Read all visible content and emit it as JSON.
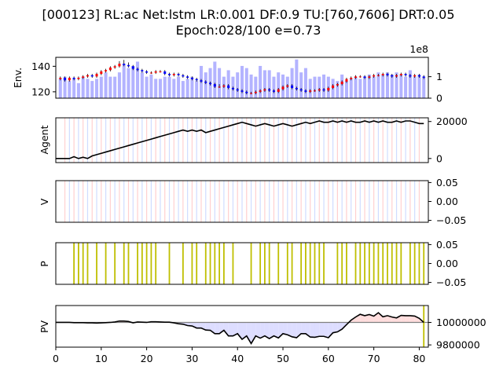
{
  "title_line1": "[000123] RL:ac Net:lstm LR:0.001 DF:0.9 TU:[760,7606] DRT:0.05",
  "title_line2": "Epoch:028/100 e=0.73",
  "colors": {
    "volume": "#b3b3ff",
    "up": "#ff0000",
    "down": "#0000ff",
    "buy_line": "#ffd0d0",
    "sell_line": "#d0dcff",
    "trade": "#bfbf00",
    "agent": "#000000",
    "pv_gain": "#ffdddd",
    "pv_loss": "#ddddff",
    "baseline": "#808080"
  },
  "chart_data": [
    {
      "panel": "env",
      "type": "bar",
      "ylabel": "Env.",
      "ylim": [
        115,
        147
      ],
      "yticks": [
        "120",
        "140"
      ],
      "right_ylim": [
        0,
        1.9
      ],
      "right_yticks": [
        "0",
        "1"
      ],
      "right_multiplier": "1e8",
      "x": [
        1,
        2,
        3,
        4,
        5,
        6,
        7,
        8,
        9,
        10,
        11,
        12,
        13,
        14,
        15,
        16,
        17,
        18,
        19,
        20,
        21,
        22,
        23,
        24,
        25,
        26,
        27,
        28,
        29,
        30,
        31,
        32,
        33,
        34,
        35,
        36,
        37,
        38,
        39,
        40,
        41,
        42,
        43,
        44,
        45,
        46,
        47,
        48,
        49,
        50,
        51,
        52,
        53,
        54,
        55,
        56,
        57,
        58,
        59,
        60,
        61,
        62,
        63,
        64,
        65,
        66,
        67,
        68,
        69,
        70,
        71,
        72,
        73,
        74,
        75,
        76,
        77,
        78,
        79,
        80,
        81
      ],
      "volume": [
        0.9,
        1.0,
        0.8,
        0.9,
        0.7,
        1.0,
        0.9,
        0.8,
        0.9,
        1.0,
        1.2,
        1.0,
        1.0,
        1.2,
        1.6,
        1.4,
        1.5,
        1.7,
        1.2,
        1.0,
        1.1,
        0.9,
        0.9,
        1.0,
        1.0,
        0.9,
        1.0,
        0.8,
        0.9,
        1.0,
        0.8,
        1.5,
        1.2,
        1.4,
        1.7,
        1.4,
        1.0,
        1.3,
        1.0,
        1.2,
        1.5,
        1.4,
        1.1,
        1.0,
        1.5,
        1.3,
        1.3,
        1.0,
        1.2,
        1.1,
        1.0,
        1.4,
        1.8,
        1.2,
        1.4,
        0.9,
        1.0,
        1.0,
        1.1,
        1.0,
        0.9,
        0.8,
        1.1,
        0.8,
        0.9,
        1.0,
        0.9,
        1.0,
        1.1,
        1.0,
        1.2,
        1.1,
        1.2,
        1.1,
        1.2,
        1.1,
        1.0,
        1.3,
        1.0,
        1.1,
        1.0
      ],
      "open": [
        130,
        131,
        129,
        131,
        130,
        131,
        132,
        133,
        132,
        134,
        136,
        137,
        139,
        140,
        142,
        141,
        140,
        138,
        137,
        136,
        135,
        135,
        136,
        136,
        134,
        133,
        134,
        133,
        132,
        131,
        130,
        129,
        128,
        127,
        126,
        124,
        124,
        125,
        123,
        122,
        121,
        120,
        119,
        119,
        120,
        121,
        122,
        121,
        120,
        122,
        124,
        125,
        123,
        122,
        121,
        120,
        121,
        121,
        122,
        121,
        123,
        125,
        126,
        128,
        130,
        131,
        132,
        132,
        131,
        132,
        133,
        133,
        134,
        133,
        132,
        133,
        134,
        133,
        132,
        133,
        132
      ],
      "close": [
        131,
        129,
        131,
        130,
        131,
        132,
        133,
        132,
        134,
        136,
        137,
        139,
        140,
        142,
        141,
        140,
        138,
        137,
        136,
        135,
        135,
        136,
        136,
        134,
        133,
        134,
        133,
        132,
        131,
        130,
        129,
        128,
        127,
        126,
        124,
        124,
        125,
        123,
        122,
        121,
        120,
        119,
        119,
        120,
        121,
        122,
        121,
        120,
        122,
        124,
        125,
        123,
        122,
        121,
        120,
        121,
        121,
        122,
        121,
        123,
        125,
        126,
        128,
        130,
        131,
        132,
        132,
        131,
        132,
        133,
        133,
        134,
        133,
        132,
        133,
        134,
        133,
        132,
        133,
        132,
        131
      ],
      "high": [
        132,
        132,
        132,
        132,
        132,
        133,
        134,
        134,
        135,
        137,
        138,
        140,
        141,
        144,
        145,
        143,
        141,
        139,
        138,
        137,
        136,
        137,
        137,
        137,
        135,
        135,
        135,
        134,
        133,
        132,
        131,
        130,
        129,
        128,
        127,
        126,
        126,
        126,
        124,
        123,
        122,
        121,
        120,
        121,
        122,
        123,
        123,
        122,
        123,
        125,
        126,
        126,
        124,
        123,
        122,
        122,
        122,
        123,
        123,
        124,
        126,
        127,
        129,
        131,
        132,
        133,
        133,
        133,
        133,
        134,
        134,
        135,
        135,
        134,
        134,
        135,
        135,
        134,
        134,
        134,
        133
      ],
      "low": [
        129,
        128,
        128,
        129,
        129,
        130,
        131,
        131,
        131,
        133,
        135,
        136,
        138,
        139,
        140,
        139,
        137,
        136,
        135,
        134,
        134,
        134,
        135,
        133,
        132,
        132,
        132,
        131,
        130,
        129,
        128,
        127,
        126,
        125,
        123,
        123,
        123,
        122,
        121,
        120,
        119,
        118,
        118,
        118,
        119,
        120,
        120,
        119,
        119,
        121,
        123,
        122,
        121,
        120,
        119,
        119,
        120,
        120,
        120,
        120,
        122,
        124,
        125,
        127,
        129,
        130,
        131,
        130,
        130,
        131,
        132,
        132,
        132,
        131,
        131,
        132,
        132,
        131,
        131,
        131,
        130
      ]
    },
    {
      "panel": "agent",
      "type": "line",
      "ylabel": "Agent",
      "ylim": [
        -2200,
        22000
      ],
      "right_yticks": [
        "0",
        "20000"
      ],
      "x": [
        0,
        1,
        2,
        3,
        4,
        5,
        6,
        7,
        8,
        9,
        10,
        11,
        12,
        13,
        14,
        15,
        16,
        17,
        18,
        19,
        20,
        21,
        22,
        23,
        24,
        25,
        26,
        27,
        28,
        29,
        30,
        31,
        32,
        33,
        34,
        35,
        36,
        37,
        38,
        39,
        40,
        41,
        42,
        43,
        44,
        45,
        46,
        47,
        48,
        49,
        50,
        51,
        52,
        53,
        54,
        55,
        56,
        57,
        58,
        59,
        60,
        61,
        62,
        63,
        64,
        65,
        66,
        67,
        68,
        69,
        70,
        71,
        72,
        73,
        74,
        75,
        76,
        77,
        78,
        79,
        80,
        81
      ],
      "values": [
        0,
        0,
        0,
        0,
        1000,
        0,
        700,
        0,
        1400,
        2100,
        2800,
        3500,
        4200,
        4900,
        5600,
        6300,
        7000,
        7700,
        8400,
        9100,
        9800,
        10500,
        11200,
        11900,
        12600,
        13300,
        14000,
        14700,
        15400,
        14700,
        15400,
        14700,
        15400,
        14000,
        14700,
        15400,
        16100,
        16800,
        17500,
        18200,
        18900,
        19600,
        18900,
        18200,
        17500,
        18200,
        18900,
        18200,
        17500,
        18200,
        18900,
        18200,
        17500,
        18200,
        18900,
        19600,
        18900,
        19600,
        20300,
        19600,
        19600,
        20300,
        19600,
        20300,
        19600,
        20300,
        19600,
        19600,
        20300,
        19600,
        20300,
        19600,
        20300,
        19600,
        19600,
        20300,
        19600,
        20300,
        20300,
        19600,
        18900,
        18900
      ],
      "buy_x": [
        2,
        4,
        6,
        8,
        10,
        12,
        14,
        16,
        18,
        20,
        22,
        24,
        26,
        28,
        30,
        32,
        34,
        36,
        38,
        40,
        42,
        44,
        46,
        48,
        50,
        52,
        54,
        56,
        58,
        60,
        62,
        64,
        66,
        68,
        70,
        72,
        74,
        76,
        78,
        80
      ],
      "sell_x": [
        3,
        5,
        7,
        9,
        11,
        13,
        15,
        17,
        19,
        21,
        23,
        25,
        27,
        29,
        31,
        33,
        35,
        37,
        39,
        41,
        43,
        45,
        47,
        49,
        51,
        53,
        55,
        57,
        59,
        61,
        63,
        65,
        67,
        69,
        71,
        73,
        75,
        77,
        79
      ]
    },
    {
      "panel": "v",
      "type": "line",
      "ylabel": "V",
      "ylim": [
        -0.055,
        0.055
      ],
      "right_yticks": [
        "0.05",
        "0.00",
        "−0.05"
      ],
      "values": []
    },
    {
      "panel": "p",
      "type": "bar",
      "ylabel": "P",
      "ylim": [
        -0.055,
        0.055
      ],
      "right_yticks": [
        "0.05",
        "0.00",
        "−0.05"
      ],
      "trade_x": [
        4,
        5,
        6,
        7,
        9,
        11,
        13,
        15,
        16,
        18,
        19,
        20,
        21,
        22,
        25,
        28,
        30,
        31,
        33,
        34,
        35,
        36,
        37,
        39,
        43,
        45,
        46,
        47,
        49,
        51,
        52,
        54,
        55,
        56,
        57,
        58,
        59,
        62,
        63,
        64,
        66,
        67,
        68,
        69,
        70,
        71,
        72,
        73,
        74,
        75,
        76,
        78,
        79,
        80,
        81
      ]
    },
    {
      "panel": "pv",
      "type": "area",
      "ylabel": "PV",
      "xlabel": "",
      "ylim": [
        9780000,
        10150000
      ],
      "baseline": 10000000,
      "right_yticks": [
        "10000000",
        "9800000"
      ],
      "xlim": [
        0,
        82
      ],
      "xticks": [
        "0",
        "10",
        "20",
        "30",
        "40",
        "50",
        "60",
        "70",
        "80"
      ],
      "values": [
        10000000,
        10000000,
        10000000,
        10000000,
        9998000,
        9998000,
        9998000,
        9996000,
        9996000,
        9994000,
        9996000,
        9998000,
        10000000,
        10004000,
        10012000,
        10012000,
        10008000,
        9996000,
        10004000,
        10002000,
        10000000,
        10006000,
        10006000,
        10004000,
        10002000,
        10002000,
        9996000,
        9988000,
        9984000,
        9972000,
        9968000,
        9950000,
        9950000,
        9932000,
        9930000,
        9900000,
        9900000,
        9930000,
        9880000,
        9880000,
        9900000,
        9850000,
        9880000,
        9812000,
        9880000,
        9860000,
        9880000,
        9856000,
        9880000,
        9862000,
        9900000,
        9890000,
        9872000,
        9864000,
        9900000,
        9900000,
        9870000,
        9868000,
        9876000,
        9876000,
        9864000,
        9908000,
        9916000,
        9940000,
        9980000,
        10020000,
        10048000,
        10072000,
        10060000,
        10070000,
        10056000,
        10086000,
        10050000,
        10060000,
        10048000,
        10040000,
        10062000,
        10060000,
        10060000,
        10056000,
        10036000,
        10000000
      ],
      "trade_x": [
        81
      ]
    }
  ]
}
